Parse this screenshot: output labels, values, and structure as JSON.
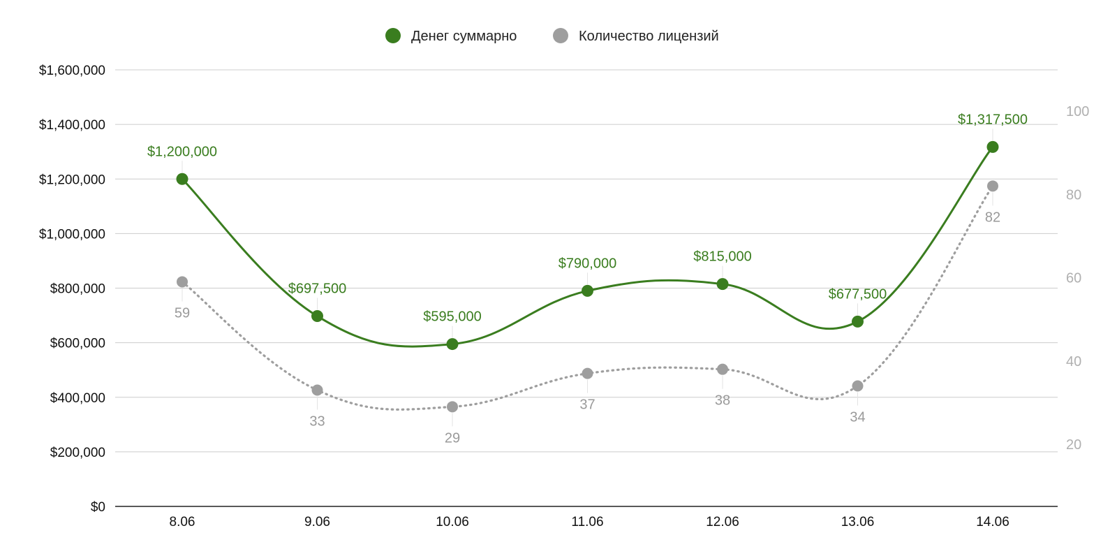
{
  "legend": {
    "money_label": "Денег суммарно",
    "licenses_label": "Количество лицензий"
  },
  "colors": {
    "money": "#3a7d1f",
    "licenses": "#9e9e9e",
    "grid": "#cccccc",
    "axis": "#222222",
    "right_ticks": "#b0b0b0"
  },
  "chart_data": {
    "type": "line",
    "categories": [
      "8.06",
      "9.06",
      "10.06",
      "11.06",
      "12.06",
      "13.06",
      "14.06"
    ],
    "series": [
      {
        "name": "Денег суммарно",
        "axis": "left",
        "values": [
          1200000,
          697500,
          595000,
          790000,
          815000,
          677500,
          1317500
        ],
        "labels": [
          "$1,200,000",
          "$697,500",
          "$595,000",
          "$790,000",
          "$815,000",
          "$677,500",
          "$1,317,500"
        ],
        "style": "solid"
      },
      {
        "name": "Количество лицензий",
        "axis": "right",
        "values": [
          59,
          33,
          29,
          37,
          38,
          34,
          82
        ],
        "labels": [
          "59",
          "33",
          "29",
          "37",
          "38",
          "34",
          "82"
        ],
        "style": "dotted"
      }
    ],
    "y_left": {
      "min": 0,
      "max": 1600000,
      "ticks": [
        0,
        200000,
        400000,
        600000,
        800000,
        1000000,
        1200000,
        1400000,
        1600000
      ],
      "tick_labels": [
        "$0",
        "$200,000",
        "$400,000",
        "$600,000",
        "$800,000",
        "$1,000,000",
        "$1,200,000",
        "$1,400,000",
        "$1,600,000"
      ]
    },
    "y_right": {
      "min": 0,
      "max": 105,
      "ticks": [
        20,
        40,
        60,
        80,
        100
      ],
      "tick_labels": [
        "20",
        "40",
        "60",
        "80",
        "100"
      ]
    },
    "grid": true,
    "legend_position": "top-center"
  }
}
